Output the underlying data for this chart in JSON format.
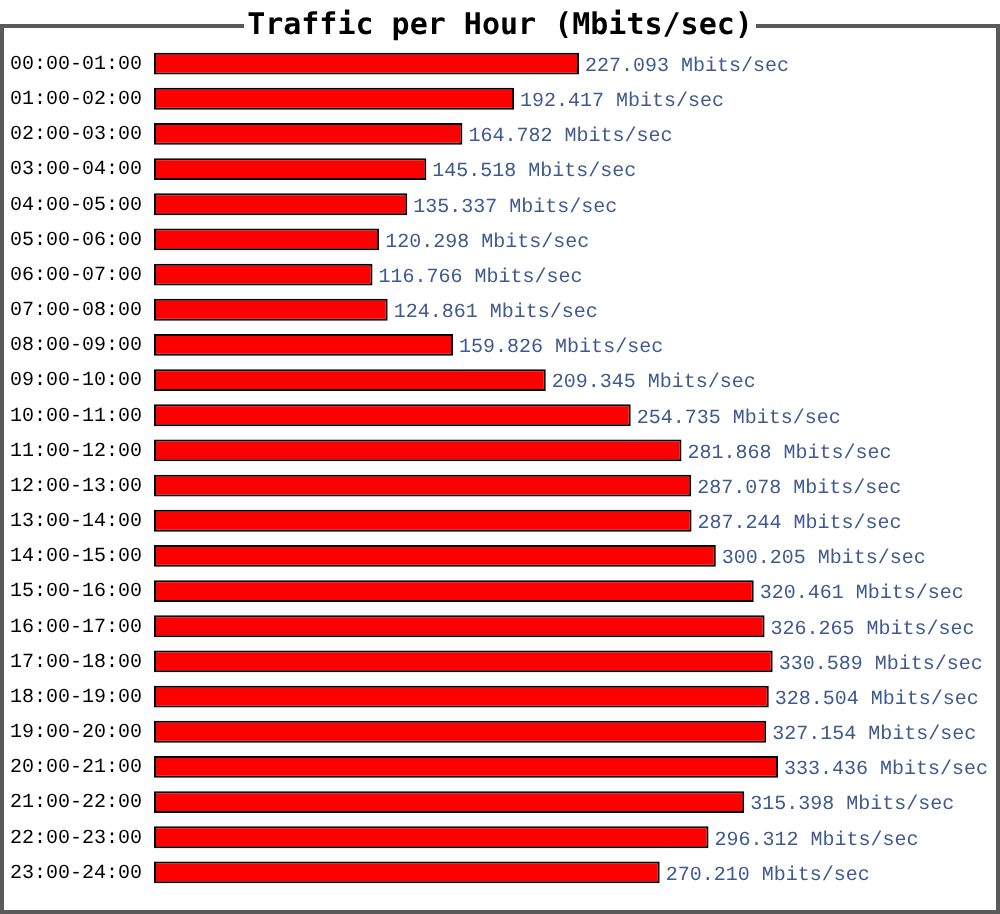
{
  "chart_data": {
    "type": "bar",
    "orientation": "horizontal",
    "title": "Traffic per Hour (Mbits/sec)",
    "tick_labels": "y",
    "color": "#ff0000",
    "categories": [
      "00:00-01:00",
      "01:00-02:00",
      "02:00-03:00",
      "03:00-04:00",
      "04:00-05:00",
      "05:00-06:00",
      "06:00-07:00",
      "07:00-08:00",
      "08:00-09:00",
      "09:00-10:00",
      "10:00-11:00",
      "11:00-12:00",
      "12:00-13:00",
      "13:00-14:00",
      "14:00-15:00",
      "15:00-16:00",
      "16:00-17:00",
      "17:00-18:00",
      "18:00-19:00",
      "19:00-20:00",
      "20:00-21:00",
      "21:00-22:00",
      "22:00-23:00",
      "23:00-24:00"
    ],
    "values": [
      227.093,
      192.417,
      164.782,
      145.518,
      135.337,
      120.298,
      116.766,
      124.861,
      159.826,
      209.345,
      254.735,
      281.868,
      287.078,
      287.244,
      300.205,
      320.461,
      326.265,
      330.589,
      328.504,
      327.154,
      333.436,
      315.398,
      296.312,
      270.21
    ],
    "value_labels": [
      "227.093 Mbits/sec",
      "192.417 Mbits/sec",
      "164.782 Mbits/sec",
      "145.518 Mbits/sec",
      "135.337 Mbits/sec",
      "120.298 Mbits/sec",
      "116.766 Mbits/sec",
      "124.861 Mbits/sec",
      "159.826 Mbits/sec",
      "209.345 Mbits/sec",
      "254.735 Mbits/sec",
      "281.868 Mbits/sec",
      "287.078 Mbits/sec",
      "287.244 Mbits/sec",
      "300.205 Mbits/sec",
      "320.461 Mbits/sec",
      "326.265 Mbits/sec",
      "330.589 Mbits/sec",
      "328.504 Mbits/sec",
      "327.154 Mbits/sec",
      "333.436 Mbits/sec",
      "315.398 Mbits/sec",
      "296.312 Mbits/sec",
      "270.210 Mbits/sec"
    ]
  }
}
